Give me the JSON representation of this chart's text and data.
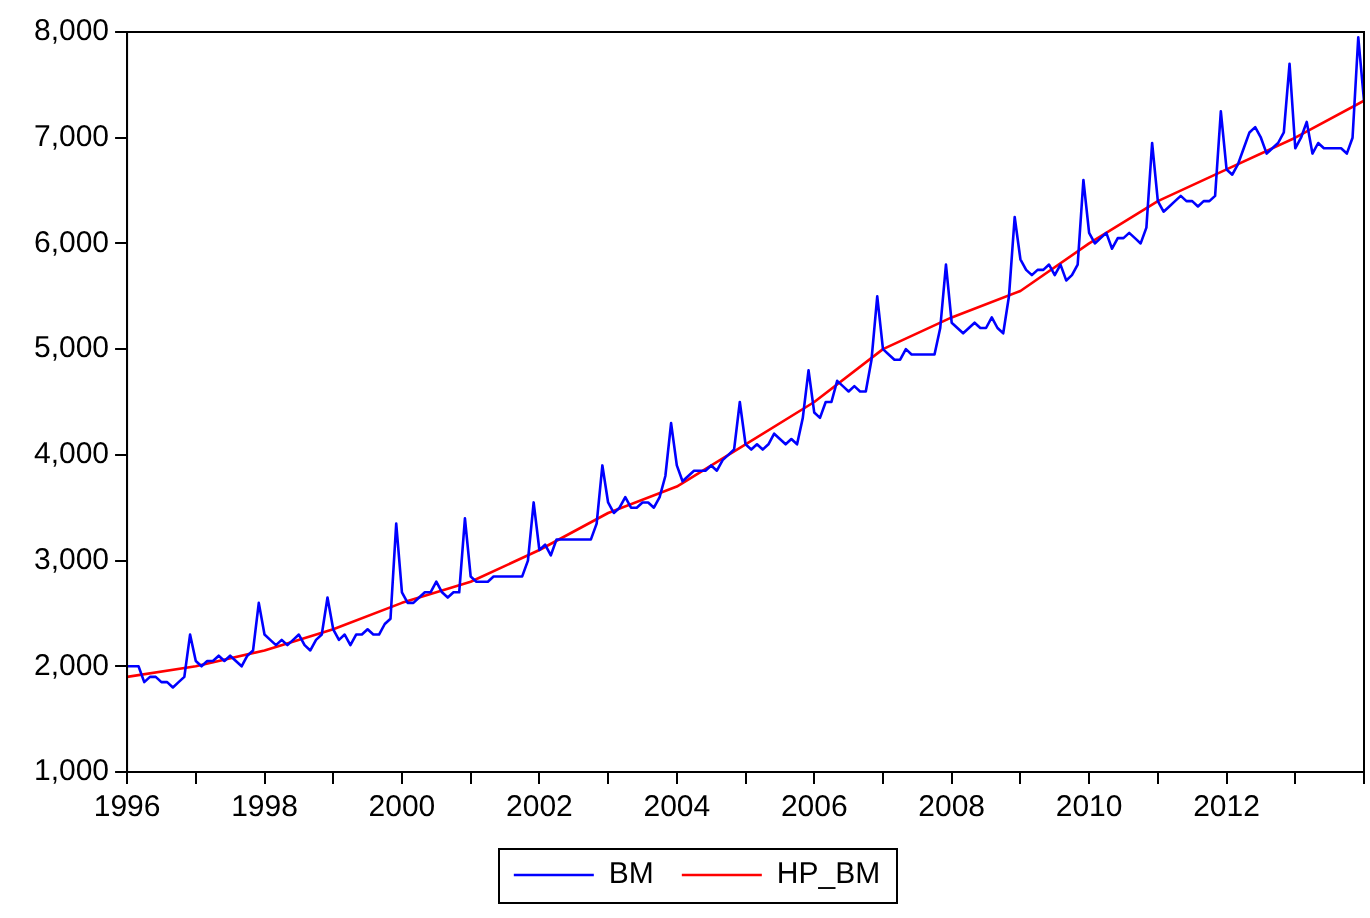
{
  "chart_data": {
    "type": "line",
    "xlim": [
      "1996-01",
      "2014-01"
    ],
    "ylim": [
      1000,
      8000
    ],
    "xticks": [
      {
        "value": "1996-01",
        "label": "1996"
      },
      {
        "value": "1997-01",
        "label": null
      },
      {
        "value": "1998-01",
        "label": "1998"
      },
      {
        "value": "1999-01",
        "label": null
      },
      {
        "value": "2000-01",
        "label": "2000"
      },
      {
        "value": "2001-01",
        "label": null
      },
      {
        "value": "2002-01",
        "label": "2002"
      },
      {
        "value": "2003-01",
        "label": null
      },
      {
        "value": "2004-01",
        "label": "2004"
      },
      {
        "value": "2005-01",
        "label": null
      },
      {
        "value": "2006-01",
        "label": "2006"
      },
      {
        "value": "2007-01",
        "label": null
      },
      {
        "value": "2008-01",
        "label": "2008"
      },
      {
        "value": "2009-01",
        "label": null
      },
      {
        "value": "2010-01",
        "label": "2010"
      },
      {
        "value": "2011-01",
        "label": null
      },
      {
        "value": "2012-01",
        "label": "2012"
      },
      {
        "value": "2013-01",
        "label": null
      },
      {
        "value": "2014-01",
        "label": null
      }
    ],
    "yticks": [
      {
        "value": 1000,
        "label": "1,000"
      },
      {
        "value": 2000,
        "label": "2,000"
      },
      {
        "value": 3000,
        "label": "3,000"
      },
      {
        "value": 4000,
        "label": "4,000"
      },
      {
        "value": 5000,
        "label": "5,000"
      },
      {
        "value": 6000,
        "label": "6,000"
      },
      {
        "value": 7000,
        "label": "7,000"
      },
      {
        "value": 8000,
        "label": "8,000"
      }
    ],
    "grid": false,
    "legend": "bottom",
    "marker": "none",
    "line_style": "solid",
    "series": [
      {
        "name": "BM",
        "color": "#0000ff",
        "x": [
          "1996-01",
          "1996-02",
          "1996-03",
          "1996-04",
          "1996-05",
          "1996-06",
          "1996-07",
          "1996-08",
          "1996-09",
          "1996-10",
          "1996-11",
          "1996-12",
          "1997-01",
          "1997-02",
          "1997-03",
          "1997-04",
          "1997-05",
          "1997-06",
          "1997-07",
          "1997-08",
          "1997-09",
          "1997-10",
          "1997-11",
          "1997-12",
          "1998-01",
          "1998-02",
          "1998-03",
          "1998-04",
          "1998-05",
          "1998-06",
          "1998-07",
          "1998-08",
          "1998-09",
          "1998-10",
          "1998-11",
          "1998-12",
          "1999-01",
          "1999-02",
          "1999-03",
          "1999-04",
          "1999-05",
          "1999-06",
          "1999-07",
          "1999-08",
          "1999-09",
          "1999-10",
          "1999-11",
          "1999-12",
          "2000-01",
          "2000-02",
          "2000-03",
          "2000-04",
          "2000-05",
          "2000-06",
          "2000-07",
          "2000-08",
          "2000-09",
          "2000-10",
          "2000-11",
          "2000-12",
          "2001-01",
          "2001-02",
          "2001-03",
          "2001-04",
          "2001-05",
          "2001-06",
          "2001-07",
          "2001-08",
          "2001-09",
          "2001-10",
          "2001-11",
          "2001-12",
          "2002-01",
          "2002-02",
          "2002-03",
          "2002-04",
          "2002-05",
          "2002-06",
          "2002-07",
          "2002-08",
          "2002-09",
          "2002-10",
          "2002-11",
          "2002-12",
          "2003-01",
          "2003-02",
          "2003-03",
          "2003-04",
          "2003-05",
          "2003-06",
          "2003-07",
          "2003-08",
          "2003-09",
          "2003-10",
          "2003-11",
          "2003-12",
          "2004-01",
          "2004-02",
          "2004-03",
          "2004-04",
          "2004-05",
          "2004-06",
          "2004-07",
          "2004-08",
          "2004-09",
          "2004-10",
          "2004-11",
          "2004-12",
          "2005-01",
          "2005-02",
          "2005-03",
          "2005-04",
          "2005-05",
          "2005-06",
          "2005-07",
          "2005-08",
          "2005-09",
          "2005-10",
          "2005-11",
          "2005-12",
          "2006-01",
          "2006-02",
          "2006-03",
          "2006-04",
          "2006-05",
          "2006-06",
          "2006-07",
          "2006-08",
          "2006-09",
          "2006-10",
          "2006-11",
          "2006-12",
          "2007-01",
          "2007-02",
          "2007-03",
          "2007-04",
          "2007-05",
          "2007-06",
          "2007-07",
          "2007-08",
          "2007-09",
          "2007-10",
          "2007-11",
          "2007-12",
          "2008-01",
          "2008-02",
          "2008-03",
          "2008-04",
          "2008-05",
          "2008-06",
          "2008-07",
          "2008-08",
          "2008-09",
          "2008-10",
          "2008-11",
          "2008-12",
          "2009-01",
          "2009-02",
          "2009-03",
          "2009-04",
          "2009-05",
          "2009-06",
          "2009-07",
          "2009-08",
          "2009-09",
          "2009-10",
          "2009-11",
          "2009-12",
          "2010-01",
          "2010-02",
          "2010-03",
          "2010-04",
          "2010-05",
          "2010-06",
          "2010-07",
          "2010-08",
          "2010-09",
          "2010-10",
          "2010-11",
          "2010-12",
          "2011-01",
          "2011-02",
          "2011-03",
          "2011-04",
          "2011-05",
          "2011-06",
          "2011-07",
          "2011-08",
          "2011-09",
          "2011-10",
          "2011-11",
          "2011-12",
          "2012-01",
          "2012-02",
          "2012-03",
          "2012-04",
          "2012-05",
          "2012-06",
          "2012-07",
          "2012-08",
          "2012-09",
          "2012-10",
          "2012-11",
          "2012-12",
          "2013-01",
          "2013-02",
          "2013-03",
          "2013-04",
          "2013-05",
          "2013-06",
          "2013-07",
          "2013-08",
          "2013-09",
          "2013-10",
          "2013-11",
          "2013-12",
          "2014-01"
        ],
        "values": [
          2000,
          2000,
          2000,
          1850,
          1900,
          1900,
          1850,
          1850,
          1800,
          1850,
          1900,
          2300,
          2050,
          2000,
          2050,
          2050,
          2100,
          2050,
          2100,
          2050,
          2000,
          2100,
          2150,
          2600,
          2300,
          2250,
          2200,
          2250,
          2200,
          2250,
          2300,
          2200,
          2150,
          2250,
          2300,
          2650,
          2350,
          2250,
          2300,
          2200,
          2300,
          2300,
          2350,
          2300,
          2300,
          2400,
          2450,
          3350,
          2700,
          2600,
          2600,
          2650,
          2700,
          2700,
          2800,
          2700,
          2650,
          2700,
          2700,
          3400,
          2850,
          2800,
          2800,
          2800,
          2850,
          2850,
          2850,
          2850,
          2850,
          2850,
          3000,
          3550,
          3100,
          3150,
          3050,
          3200,
          3200,
          3200,
          3200,
          3200,
          3200,
          3200,
          3350,
          3900,
          3550,
          3450,
          3500,
          3600,
          3500,
          3500,
          3550,
          3550,
          3500,
          3600,
          3800,
          4300,
          3900,
          3750,
          3800,
          3850,
          3850,
          3850,
          3900,
          3850,
          3950,
          4000,
          4050,
          4500,
          4100,
          4050,
          4100,
          4050,
          4100,
          4200,
          4150,
          4100,
          4150,
          4100,
          4350,
          4800,
          4400,
          4350,
          4500,
          4500,
          4700,
          4650,
          4600,
          4650,
          4600,
          4600,
          4900,
          5500,
          5000,
          4950,
          4900,
          4900,
          5000,
          4950,
          4950,
          4950,
          4950,
          4950,
          5200,
          5800,
          5250,
          5200,
          5150,
          5200,
          5250,
          5200,
          5200,
          5300,
          5200,
          5150,
          5500,
          6250,
          5850,
          5750,
          5700,
          5750,
          5750,
          5800,
          5700,
          5800,
          5650,
          5700,
          5800,
          6600,
          6100,
          6000,
          6050,
          6100,
          5950,
          6050,
          6050,
          6100,
          6050,
          6000,
          6150,
          6950,
          6400,
          6300,
          6350,
          6400,
          6450,
          6400,
          6400,
          6350,
          6400,
          6400,
          6450,
          7250,
          6700,
          6650,
          6750,
          6900,
          7050,
          7100,
          7000,
          6850,
          6900,
          6950,
          7050,
          7700,
          6900,
          7000,
          7150,
          6850,
          6950,
          6900,
          6900,
          6900,
          6900,
          6850,
          7000,
          7950,
          7350
        ]
      },
      {
        "name": "HP_BM",
        "color": "#ff0000",
        "x": [
          "1996-01",
          "1997-01",
          "1998-01",
          "1999-01",
          "2000-01",
          "2001-01",
          "2002-01",
          "2003-01",
          "2004-01",
          "2005-01",
          "2006-01",
          "2007-01",
          "2008-01",
          "2009-01",
          "2010-01",
          "2011-01",
          "2012-01",
          "2013-01",
          "2014-01"
        ],
        "values": [
          1900,
          2000,
          2150,
          2350,
          2600,
          2800,
          3100,
          3450,
          3700,
          4100,
          4500,
          5000,
          5300,
          5550,
          6000,
          6400,
          6700,
          7000,
          7350
        ]
      }
    ]
  }
}
